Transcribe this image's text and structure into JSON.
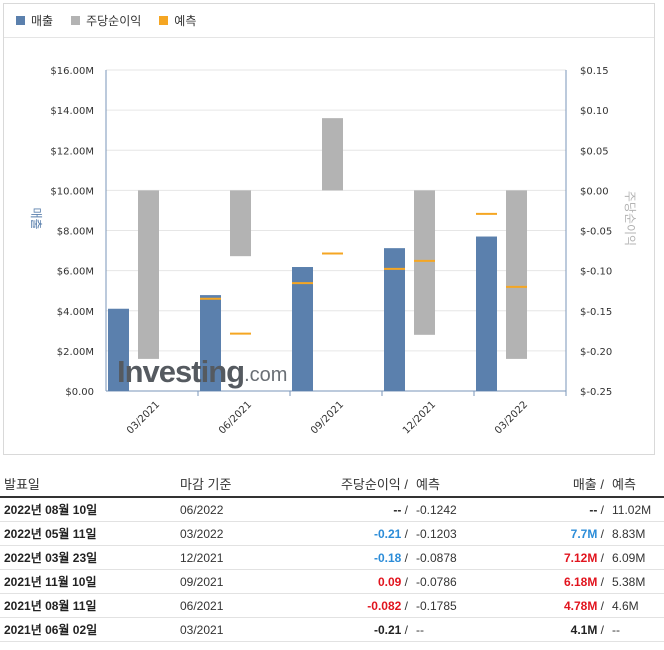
{
  "legend": {
    "revenue": {
      "label": "매출",
      "color": "#5b80ad"
    },
    "eps": {
      "label": "주당순이익",
      "color": "#b3b3b3"
    },
    "forecast": {
      "label": "예측",
      "color": "#f5a623"
    }
  },
  "chart_data": {
    "type": "bar",
    "categories": [
      "03/2021",
      "06/2021",
      "09/2021",
      "12/2021",
      "03/2022"
    ],
    "y_left": {
      "label": "매출",
      "ylim": [
        0,
        16
      ],
      "ticks": [
        "$0.00",
        "$2.00M",
        "$4.00M",
        "$6.00M",
        "$8.00M",
        "$10.00M",
        "$12.00M",
        "$14.00M",
        "$16.00M"
      ],
      "tick_values": [
        0,
        2,
        4,
        6,
        8,
        10,
        12,
        14,
        16
      ]
    },
    "y_right": {
      "label": "주당순이익",
      "ylim": [
        -0.25,
        0.15
      ],
      "ticks": [
        "$-0.25",
        "$-0.20",
        "$-0.15",
        "$-0.10",
        "$-0.05",
        "$0.00",
        "$0.05",
        "$0.10",
        "$0.15"
      ],
      "tick_values": [
        -0.25,
        -0.2,
        -0.15,
        -0.1,
        -0.05,
        0,
        0.05,
        0.1,
        0.15
      ]
    },
    "series": [
      {
        "name": "매출",
        "axis": "left",
        "values": [
          4.1,
          4.78,
          6.18,
          7.12,
          7.7
        ],
        "forecast": [
          null,
          4.6,
          5.38,
          6.09,
          8.83
        ]
      },
      {
        "name": "주당순이익",
        "axis": "right",
        "values": [
          -0.21,
          -0.082,
          0.09,
          -0.18,
          -0.21
        ],
        "forecast": [
          null,
          -0.1785,
          -0.0786,
          -0.0878,
          -0.1203
        ]
      }
    ]
  },
  "watermark": {
    "main": "Investing",
    "suffix": ".com"
  },
  "table": {
    "headers": {
      "date": "발표일",
      "period": "마감 기준",
      "eps": "주당순이익",
      "eps_sep": "/",
      "eps_forecast": "예측",
      "revenue": "매출",
      "rev_sep": "/",
      "rev_forecast": "예측"
    },
    "rows": [
      {
        "date": "2022년 08월 10일",
        "period": "06/2022",
        "eps": "--",
        "eps_sep": "/",
        "eps_forecast": "-0.1242",
        "revenue": "--",
        "rev_sep": "/",
        "rev_forecast": "11.02M",
        "eps_color": "neutral",
        "rev_color": "neutral"
      },
      {
        "date": "2022년 05월 11일",
        "period": "03/2022",
        "eps": "-0.21",
        "eps_sep": "/",
        "eps_forecast": "-0.1203",
        "revenue": "7.7M",
        "rev_sep": "/",
        "rev_forecast": "8.83M",
        "eps_color": "neg",
        "rev_color": "neg"
      },
      {
        "date": "2022년 03월 23일",
        "period": "12/2021",
        "eps": "-0.18",
        "eps_sep": "/",
        "eps_forecast": "-0.0878",
        "revenue": "7.12M",
        "rev_sep": "/",
        "rev_forecast": "6.09M",
        "eps_color": "neg",
        "rev_color": "pos"
      },
      {
        "date": "2021년 11월 10일",
        "period": "09/2021",
        "eps": "0.09",
        "eps_sep": "/",
        "eps_forecast": "-0.0786",
        "revenue": "6.18M",
        "rev_sep": "/",
        "rev_forecast": "5.38M",
        "eps_color": "pos",
        "rev_color": "pos"
      },
      {
        "date": "2021년 08월 11일",
        "period": "06/2021",
        "eps": "-0.082",
        "eps_sep": "/",
        "eps_forecast": "-0.1785",
        "revenue": "4.78M",
        "rev_sep": "/",
        "rev_forecast": "4.6M",
        "eps_color": "pos",
        "rev_color": "pos"
      },
      {
        "date": "2021년 06월 02일",
        "period": "03/2021",
        "eps": "-0.21",
        "eps_sep": "/",
        "eps_forecast": "--",
        "revenue": "4.1M",
        "rev_sep": "/",
        "rev_forecast": "--",
        "eps_color": "neutral",
        "rev_color": "neutral"
      }
    ]
  }
}
